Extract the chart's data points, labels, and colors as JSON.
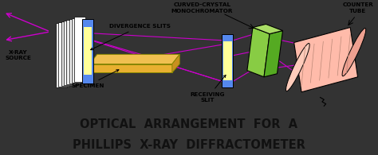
{
  "fig_width": 4.74,
  "fig_height": 1.95,
  "dpi": 100,
  "diagram_bg": "#FFFF99",
  "caption_bg": "#AAFFFF",
  "border_color": "#333333",
  "caption_text_line1": "OPTICAL  ARRANGEMENT  FOR  A",
  "caption_text_line2": "PHILLIPS  X-RAY  DIFFRACTOMETER",
  "caption_font_size": 10.5,
  "label_fontsize": 5.2,
  "ray_color": "#CC00CC",
  "arrow_color": "#000000",
  "labels": {
    "xray_source": "X-RAY\nSOURCE",
    "divergence_slits": "DIVERGENCE SLITS",
    "curved_crystal": "CURVED-CRYSTAL\nMONOCHROMATOR",
    "counter_tube": "COUNTER\nTUBE",
    "specimen": "SPECIMEN",
    "receiving_slit": "RECEIVING\nSLIT"
  }
}
